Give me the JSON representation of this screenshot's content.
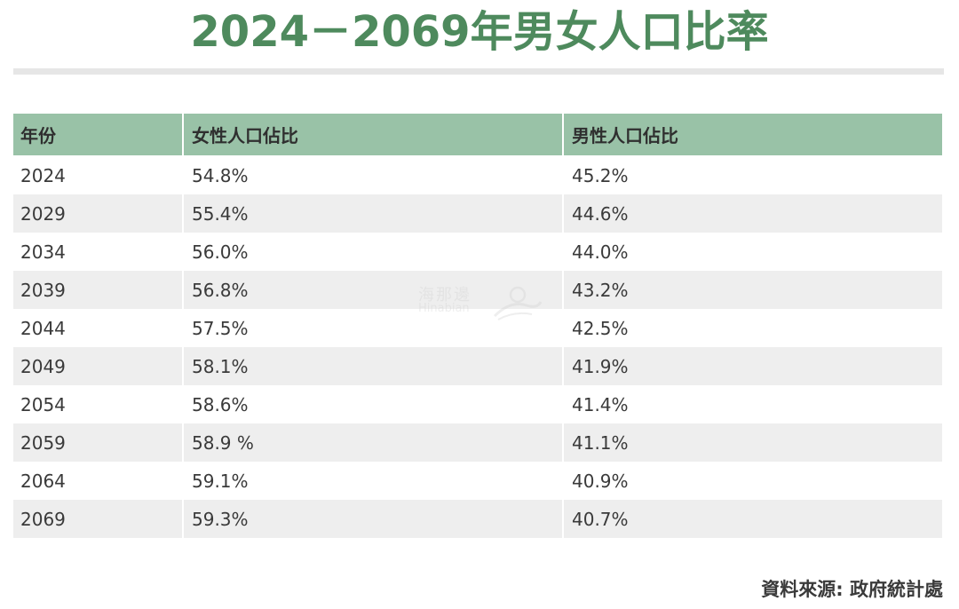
{
  "title": "2024－2069年男女人口比率",
  "colors": {
    "title": "#4e8a5d",
    "header_bg": "#99c2a7",
    "rule": "#e6e6e6",
    "stripe": "#eeeeee"
  },
  "watermark": {
    "cn": "海那邊",
    "en": "Hinabian",
    "icon": "bird-logo-icon"
  },
  "source": "資料來源: 政府統計處",
  "chart_data": {
    "type": "table",
    "columns": [
      "年份",
      "女性人口佔比",
      "男性人口佔比"
    ],
    "rows": [
      [
        "2024",
        "54.8%",
        "45.2%"
      ],
      [
        "2029",
        "55.4%",
        "44.6%"
      ],
      [
        "2034",
        "56.0%",
        "44.0%"
      ],
      [
        "2039",
        "56.8%",
        "43.2%"
      ],
      [
        "2044",
        "57.5%",
        "42.5%"
      ],
      [
        "2049",
        "58.1%",
        "41.9%"
      ],
      [
        "2054",
        "58.6%",
        "41.4%"
      ],
      [
        "2059",
        "58.9 %",
        "41.1%"
      ],
      [
        "2064",
        "59.1%",
        "40.9%"
      ],
      [
        "2069",
        "59.3%",
        "40.7%"
      ]
    ]
  }
}
